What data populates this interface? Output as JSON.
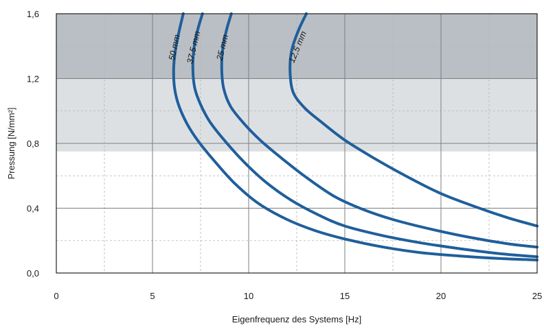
{
  "chart_data": {
    "type": "line",
    "title": "",
    "xlabel": "Eigenfrequenz des Systems [Hz]",
    "ylabel": "Pressung [N/mm²]",
    "xlim": [
      0,
      25
    ],
    "ylim": [
      0,
      1.6
    ],
    "x_ticks": [
      0,
      5,
      10,
      15,
      20,
      25
    ],
    "y_ticks": [
      0.0,
      0.4,
      0.8,
      1.2,
      1.6
    ],
    "x_tick_labels": [
      "0",
      "5",
      "10",
      "15",
      "20",
      "25"
    ],
    "y_tick_labels": [
      "0,0",
      "0,4",
      "0,8",
      "1,2",
      "1,6"
    ],
    "grid": true,
    "bands": [
      {
        "from": 1.2,
        "to": 1.6,
        "color": "#b9bfc4"
      },
      {
        "from": 0.75,
        "to": 1.2,
        "color": "#dde0e3"
      }
    ],
    "line_color": "#1f5f9b",
    "series": [
      {
        "name": "50 mm",
        "points": [
          [
            6.6,
            1.6
          ],
          [
            6.4,
            1.5
          ],
          [
            6.2,
            1.38
          ],
          [
            6.1,
            1.26
          ],
          [
            6.15,
            1.14
          ],
          [
            6.35,
            1.04
          ],
          [
            6.8,
            0.92
          ],
          [
            7.4,
            0.81
          ],
          [
            8.3,
            0.68
          ],
          [
            9.3,
            0.55
          ],
          [
            10.5,
            0.43
          ],
          [
            12,
            0.33
          ],
          [
            13.5,
            0.26
          ],
          [
            15,
            0.21
          ],
          [
            17,
            0.16
          ],
          [
            19,
            0.125
          ],
          [
            21,
            0.105
          ],
          [
            23,
            0.09
          ],
          [
            25,
            0.08
          ]
        ]
      },
      {
        "name": "37,5 mm",
        "points": [
          [
            7.6,
            1.6
          ],
          [
            7.35,
            1.5
          ],
          [
            7.15,
            1.38
          ],
          [
            7.1,
            1.26
          ],
          [
            7.2,
            1.14
          ],
          [
            7.5,
            1.04
          ],
          [
            8,
            0.93
          ],
          [
            8.8,
            0.81
          ],
          [
            9.8,
            0.68
          ],
          [
            10.9,
            0.56
          ],
          [
            12.2,
            0.45
          ],
          [
            13.6,
            0.36
          ],
          [
            15,
            0.29
          ],
          [
            17,
            0.23
          ],
          [
            19,
            0.185
          ],
          [
            21,
            0.15
          ],
          [
            23,
            0.12
          ],
          [
            25,
            0.1
          ]
        ]
      },
      {
        "name": "25 mm",
        "points": [
          [
            9.1,
            1.6
          ],
          [
            8.85,
            1.5
          ],
          [
            8.65,
            1.38
          ],
          [
            8.6,
            1.26
          ],
          [
            8.7,
            1.14
          ],
          [
            9.05,
            1.03
          ],
          [
            9.7,
            0.93
          ],
          [
            10.6,
            0.82
          ],
          [
            11.7,
            0.71
          ],
          [
            13,
            0.59
          ],
          [
            14.5,
            0.47
          ],
          [
            16,
            0.39
          ],
          [
            17.5,
            0.33
          ],
          [
            19.5,
            0.27
          ],
          [
            21.5,
            0.22
          ],
          [
            23.5,
            0.18
          ],
          [
            25,
            0.16
          ]
        ]
      },
      {
        "name": "12,5 mm",
        "points": [
          [
            13,
            1.6
          ],
          [
            12.6,
            1.5
          ],
          [
            12.25,
            1.38
          ],
          [
            12.15,
            1.26
          ],
          [
            12.3,
            1.12
          ],
          [
            12.9,
            1.02
          ],
          [
            13.8,
            0.93
          ],
          [
            15,
            0.82
          ],
          [
            16.5,
            0.71
          ],
          [
            18,
            0.61
          ],
          [
            20,
            0.49
          ],
          [
            22,
            0.4
          ],
          [
            23.5,
            0.34
          ],
          [
            25,
            0.29
          ]
        ]
      }
    ]
  }
}
